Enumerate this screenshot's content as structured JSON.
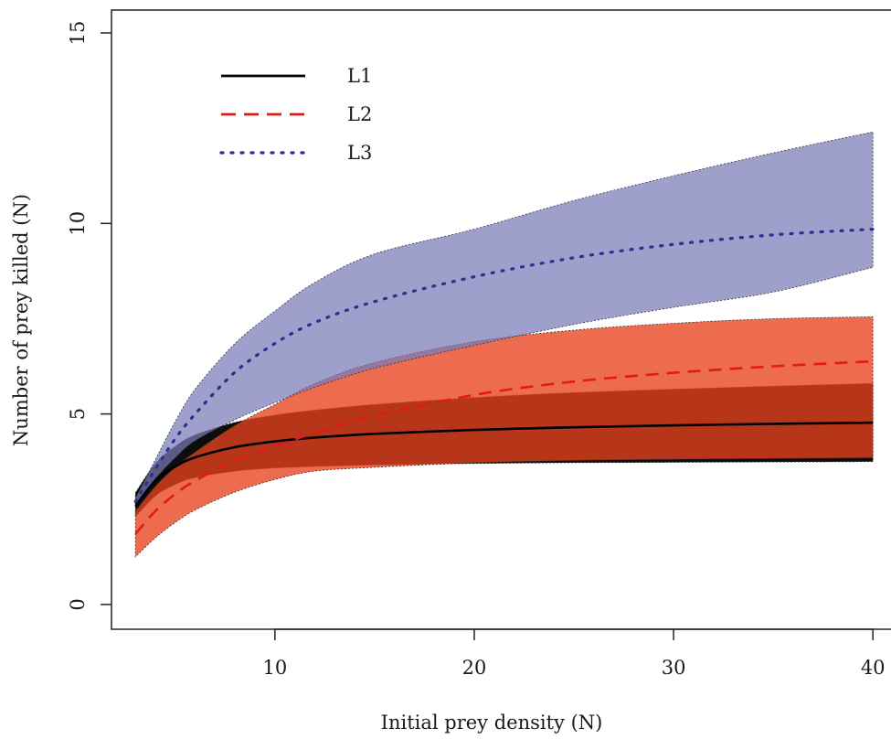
{
  "chart_data": {
    "type": "line",
    "title": "",
    "xlabel": "Initial prey density (N)",
    "ylabel": "Number of prey killed (N)",
    "xlim": [
      1.8,
      41
    ],
    "ylim": [
      -0.65,
      15.6
    ],
    "xticks": [
      10,
      20,
      30,
      40
    ],
    "yticks": [
      0,
      5,
      10,
      15
    ],
    "tick_labels": {
      "x": [
        "10",
        "20",
        "30",
        "40"
      ],
      "y": [
        "0",
        "5",
        "10",
        "15"
      ]
    },
    "grid": false,
    "legend_position": "top-left",
    "x": [
      3,
      4,
      5,
      6,
      8,
      10,
      12,
      15,
      20,
      25,
      30,
      35,
      40
    ],
    "series": [
      {
        "name": "L1",
        "line_style": "solid",
        "line_color": "#000000",
        "band_color": "#000000",
        "values": [
          2.58,
          3.25,
          3.62,
          3.86,
          4.13,
          4.28,
          4.38,
          4.48,
          4.58,
          4.65,
          4.7,
          4.74,
          4.77
        ],
        "lower": [
          2.3,
          2.85,
          3.15,
          3.33,
          3.5,
          3.58,
          3.62,
          3.66,
          3.7,
          3.72,
          3.73,
          3.74,
          3.75
        ],
        "upper": [
          2.93,
          3.7,
          4.15,
          4.45,
          4.78,
          4.97,
          5.1,
          5.25,
          5.43,
          5.56,
          5.65,
          5.73,
          5.8
        ]
      },
      {
        "name": "L2",
        "line_style": "dashed",
        "line_color": "#e01a1a",
        "band_color": "#e8431e",
        "values": [
          1.85,
          2.45,
          2.9,
          3.25,
          3.78,
          4.15,
          4.5,
          4.95,
          5.5,
          5.85,
          6.08,
          6.25,
          6.38
        ],
        "lower": [
          1.25,
          1.75,
          2.15,
          2.48,
          2.95,
          3.28,
          3.5,
          3.6,
          3.72,
          3.78,
          3.81,
          3.83,
          3.85
        ],
        "upper": [
          2.45,
          3.1,
          3.6,
          4.0,
          4.7,
          5.25,
          5.8,
          6.35,
          6.9,
          7.2,
          7.38,
          7.5,
          7.55
        ]
      },
      {
        "name": "L3",
        "line_style": "dotted",
        "line_color": "#2b2f8f",
        "band_color": "#7a7ab8",
        "values": [
          2.7,
          3.55,
          4.35,
          5.0,
          6.1,
          6.85,
          7.4,
          7.95,
          8.6,
          9.1,
          9.45,
          9.7,
          9.85
        ],
        "lower": [
          2.62,
          3.3,
          3.85,
          4.3,
          4.85,
          5.3,
          5.7,
          6.2,
          6.8,
          7.35,
          7.8,
          8.2,
          8.85
        ],
        "upper": [
          2.78,
          3.8,
          4.8,
          5.65,
          6.85,
          7.7,
          8.45,
          9.2,
          9.85,
          10.6,
          11.25,
          11.85,
          12.4
        ]
      }
    ]
  }
}
